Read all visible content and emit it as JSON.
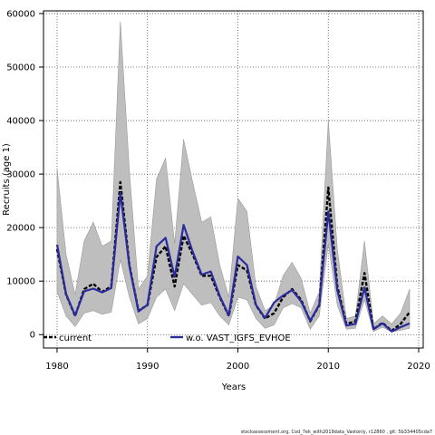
{
  "chart_data": {
    "type": "line",
    "xlabel": "Years",
    "ylabel": "Recruits (age 1)",
    "xlim": [
      1978.5,
      2020.5
    ],
    "ylim": [
      -2500,
      60500
    ],
    "x_ticks": [
      "1980",
      "1990",
      "2000",
      "2010",
      "2020"
    ],
    "x_tick_values": [
      1980,
      1990,
      2000,
      2010,
      2020
    ],
    "y_ticks": [
      "0",
      "10000",
      "20000",
      "30000",
      "40000",
      "50000",
      "60000"
    ],
    "y_tick_values": [
      0,
      10000,
      20000,
      30000,
      40000,
      50000,
      60000
    ],
    "grid": true,
    "legend_position": "bottom",
    "x": [
      1980,
      1981,
      1982,
      1983,
      1984,
      1985,
      1986,
      1987,
      1988,
      1989,
      1990,
      1991,
      1992,
      1993,
      1994,
      1995,
      1996,
      1997,
      1998,
      1999,
      2000,
      2001,
      2002,
      2003,
      2004,
      2005,
      2006,
      2007,
      2008,
      2009,
      2010,
      2011,
      2012,
      2013,
      2014,
      2015,
      2016,
      2017,
      2018,
      2019
    ],
    "band": {
      "upper": [
        31000,
        15000,
        7500,
        17500,
        21000,
        16500,
        17500,
        58500,
        30500,
        8500,
        11000,
        29000,
        33000,
        17000,
        36500,
        28500,
        21000,
        22000,
        13000,
        7000,
        25500,
        23000,
        9000,
        4500,
        5500,
        11000,
        13500,
        10500,
        4000,
        8000,
        40000,
        16000,
        3000,
        3500,
        17500,
        2000,
        3500,
        2000,
        4000,
        8500
      ],
      "lower": [
        8000,
        3500,
        1500,
        4000,
        4500,
        3800,
        4200,
        14000,
        7000,
        2000,
        3000,
        7000,
        8500,
        4500,
        9500,
        7500,
        5500,
        6000,
        3500,
        1800,
        7000,
        6500,
        3000,
        1200,
        1800,
        5000,
        5800,
        5000,
        1000,
        3500,
        17000,
        5500,
        1000,
        1200,
        6500,
        600,
        1400,
        500,
        800,
        1200
      ]
    },
    "series": [
      {
        "name": "current",
        "color": "#000000",
        "style": "dashed",
        "values": [
          16000,
          7500,
          3500,
          8500,
          9500,
          8000,
          9000,
          28500,
          13000,
          4500,
          5500,
          14500,
          16500,
          9000,
          18500,
          15000,
          11000,
          11000,
          7000,
          3500,
          13000,
          12000,
          5500,
          3000,
          4000,
          7000,
          8500,
          6500,
          2500,
          5500,
          27500,
          9000,
          2000,
          2500,
          11500,
          1000,
          2200,
          700,
          2000,
          4200
        ]
      },
      {
        "name": "w.o. VAST_IGFS_EVHOE",
        "color": "#2b2b9e",
        "style": "solid",
        "values": [
          16800,
          7600,
          3600,
          8100,
          8600,
          7900,
          8700,
          26500,
          12800,
          4300,
          5600,
          16500,
          18100,
          10800,
          20500,
          15500,
          11200,
          11800,
          7200,
          3600,
          14600,
          13000,
          5600,
          3100,
          6000,
          7300,
          8300,
          6200,
          2600,
          5600,
          23000,
          8300,
          1700,
          2000,
          8800,
          1000,
          2100,
          600,
          1400,
          2100
        ]
      }
    ]
  },
  "footer_text": "stockassessment.org, Cod_7ek_with2019data_Vastonly, r12860 , git: 5b334405cda7"
}
